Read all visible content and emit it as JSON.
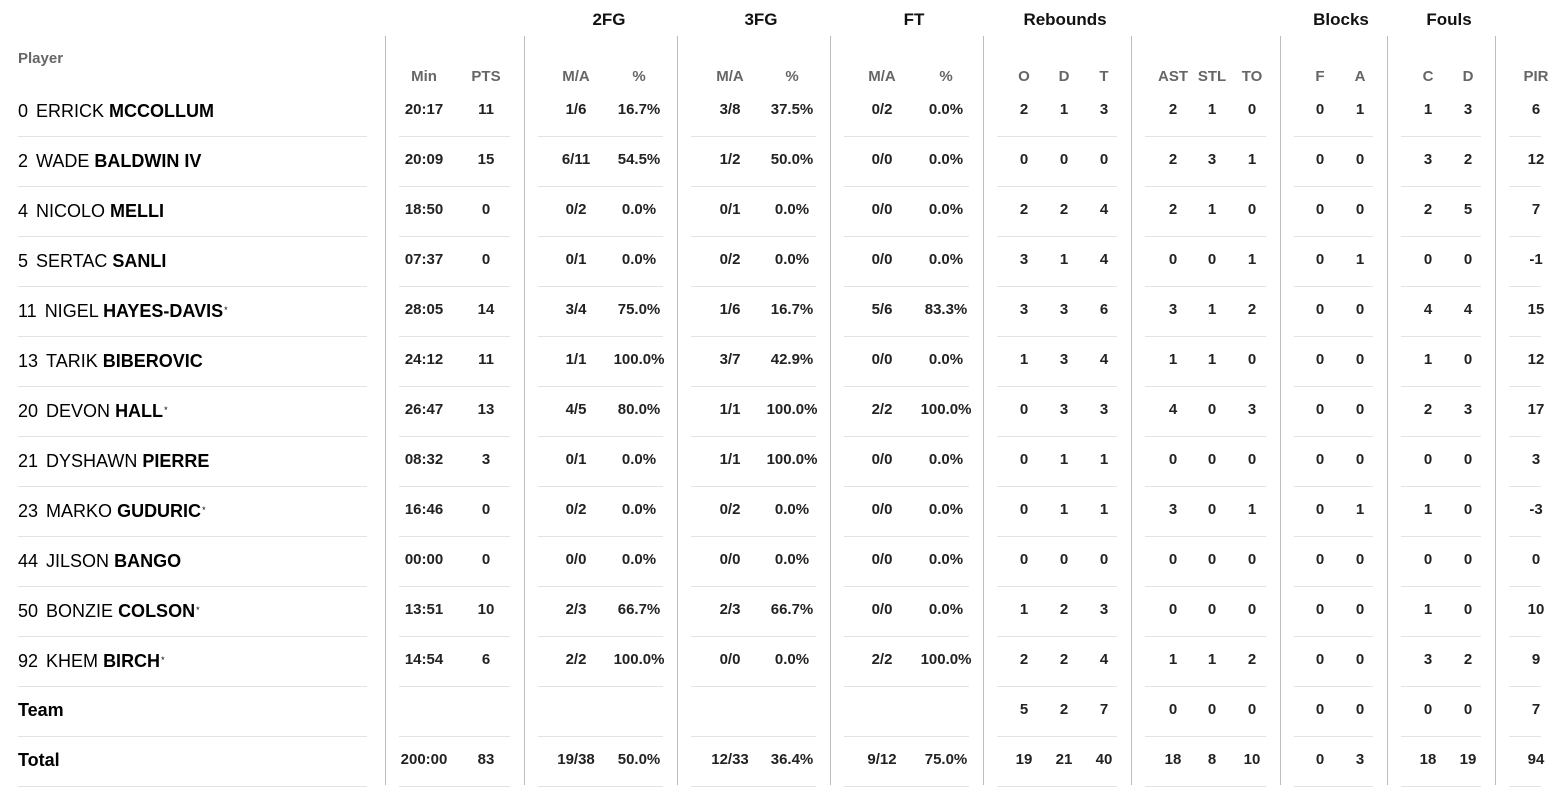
{
  "header": {
    "player": "Player",
    "groups": {
      "fg2": "2FG",
      "fg3": "3FG",
      "ft": "FT",
      "rebounds": "Rebounds",
      "blocks": "Blocks",
      "fouls": "Fouls"
    },
    "columns": {
      "min": "Min",
      "pts": "PTS",
      "fg2_ma": "M/A",
      "fg2_pct": "%",
      "fg3_ma": "M/A",
      "fg3_pct": "%",
      "ft_ma": "M/A",
      "ft_pct": "%",
      "reb_o": "O",
      "reb_d": "D",
      "reb_t": "T",
      "ast": "AST",
      "stl": "STL",
      "to": "TO",
      "blk_f": "F",
      "blk_a": "A",
      "foul_c": "C",
      "foul_d": "D",
      "pir": "PIR"
    }
  },
  "rows": [
    {
      "num": "0",
      "first": "ERRICK",
      "last": "MCCOLLUM",
      "star": "",
      "min": "20:17",
      "pts": "11",
      "fg2_ma": "1/6",
      "fg2_pct": "16.7%",
      "fg3_ma": "3/8",
      "fg3_pct": "37.5%",
      "ft_ma": "0/2",
      "ft_pct": "0.0%",
      "reb_o": "2",
      "reb_d": "1",
      "reb_t": "3",
      "ast": "2",
      "stl": "1",
      "to": "0",
      "blk_f": "0",
      "blk_a": "1",
      "foul_c": "1",
      "foul_d": "3",
      "pir": "6"
    },
    {
      "num": "2",
      "first": "WADE",
      "last": "BALDWIN IV",
      "star": "",
      "min": "20:09",
      "pts": "15",
      "fg2_ma": "6/11",
      "fg2_pct": "54.5%",
      "fg3_ma": "1/2",
      "fg3_pct": "50.0%",
      "ft_ma": "0/0",
      "ft_pct": "0.0%",
      "reb_o": "0",
      "reb_d": "0",
      "reb_t": "0",
      "ast": "2",
      "stl": "3",
      "to": "1",
      "blk_f": "0",
      "blk_a": "0",
      "foul_c": "3",
      "foul_d": "2",
      "pir": "12"
    },
    {
      "num": "4",
      "first": "NICOLO",
      "last": "MELLI",
      "star": "",
      "min": "18:50",
      "pts": "0",
      "fg2_ma": "0/2",
      "fg2_pct": "0.0%",
      "fg3_ma": "0/1",
      "fg3_pct": "0.0%",
      "ft_ma": "0/0",
      "ft_pct": "0.0%",
      "reb_o": "2",
      "reb_d": "2",
      "reb_t": "4",
      "ast": "2",
      "stl": "1",
      "to": "0",
      "blk_f": "0",
      "blk_a": "0",
      "foul_c": "2",
      "foul_d": "5",
      "pir": "7"
    },
    {
      "num": "5",
      "first": "SERTAC",
      "last": "SANLI",
      "star": "",
      "min": "07:37",
      "pts": "0",
      "fg2_ma": "0/1",
      "fg2_pct": "0.0%",
      "fg3_ma": "0/2",
      "fg3_pct": "0.0%",
      "ft_ma": "0/0",
      "ft_pct": "0.0%",
      "reb_o": "3",
      "reb_d": "1",
      "reb_t": "4",
      "ast": "0",
      "stl": "0",
      "to": "1",
      "blk_f": "0",
      "blk_a": "1",
      "foul_c": "0",
      "foul_d": "0",
      "pir": "-1"
    },
    {
      "num": "11",
      "first": "NIGEL",
      "last": "HAYES-DAVIS",
      "star": "*",
      "min": "28:05",
      "pts": "14",
      "fg2_ma": "3/4",
      "fg2_pct": "75.0%",
      "fg3_ma": "1/6",
      "fg3_pct": "16.7%",
      "ft_ma": "5/6",
      "ft_pct": "83.3%",
      "reb_o": "3",
      "reb_d": "3",
      "reb_t": "6",
      "ast": "3",
      "stl": "1",
      "to": "2",
      "blk_f": "0",
      "blk_a": "0",
      "foul_c": "4",
      "foul_d": "4",
      "pir": "15"
    },
    {
      "num": "13",
      "first": "TARIK",
      "last": "BIBEROVIC",
      "star": "",
      "min": "24:12",
      "pts": "11",
      "fg2_ma": "1/1",
      "fg2_pct": "100.0%",
      "fg3_ma": "3/7",
      "fg3_pct": "42.9%",
      "ft_ma": "0/0",
      "ft_pct": "0.0%",
      "reb_o": "1",
      "reb_d": "3",
      "reb_t": "4",
      "ast": "1",
      "stl": "1",
      "to": "0",
      "blk_f": "0",
      "blk_a": "0",
      "foul_c": "1",
      "foul_d": "0",
      "pir": "12"
    },
    {
      "num": "20",
      "first": "DEVON",
      "last": "HALL",
      "star": "*",
      "min": "26:47",
      "pts": "13",
      "fg2_ma": "4/5",
      "fg2_pct": "80.0%",
      "fg3_ma": "1/1",
      "fg3_pct": "100.0%",
      "ft_ma": "2/2",
      "ft_pct": "100.0%",
      "reb_o": "0",
      "reb_d": "3",
      "reb_t": "3",
      "ast": "4",
      "stl": "0",
      "to": "3",
      "blk_f": "0",
      "blk_a": "0",
      "foul_c": "2",
      "foul_d": "3",
      "pir": "17"
    },
    {
      "num": "21",
      "first": "DYSHAWN",
      "last": "PIERRE",
      "star": "",
      "min": "08:32",
      "pts": "3",
      "fg2_ma": "0/1",
      "fg2_pct": "0.0%",
      "fg3_ma": "1/1",
      "fg3_pct": "100.0%",
      "ft_ma": "0/0",
      "ft_pct": "0.0%",
      "reb_o": "0",
      "reb_d": "1",
      "reb_t": "1",
      "ast": "0",
      "stl": "0",
      "to": "0",
      "blk_f": "0",
      "blk_a": "0",
      "foul_c": "0",
      "foul_d": "0",
      "pir": "3"
    },
    {
      "num": "23",
      "first": "MARKO",
      "last": "GUDURIC",
      "star": "*",
      "min": "16:46",
      "pts": "0",
      "fg2_ma": "0/2",
      "fg2_pct": "0.0%",
      "fg3_ma": "0/2",
      "fg3_pct": "0.0%",
      "ft_ma": "0/0",
      "ft_pct": "0.0%",
      "reb_o": "0",
      "reb_d": "1",
      "reb_t": "1",
      "ast": "3",
      "stl": "0",
      "to": "1",
      "blk_f": "0",
      "blk_a": "1",
      "foul_c": "1",
      "foul_d": "0",
      "pir": "-3"
    },
    {
      "num": "44",
      "first": "JILSON",
      "last": "BANGO",
      "star": "",
      "min": "00:00",
      "pts": "0",
      "fg2_ma": "0/0",
      "fg2_pct": "0.0%",
      "fg3_ma": "0/0",
      "fg3_pct": "0.0%",
      "ft_ma": "0/0",
      "ft_pct": "0.0%",
      "reb_o": "0",
      "reb_d": "0",
      "reb_t": "0",
      "ast": "0",
      "stl": "0",
      "to": "0",
      "blk_f": "0",
      "blk_a": "0",
      "foul_c": "0",
      "foul_d": "0",
      "pir": "0"
    },
    {
      "num": "50",
      "first": "BONZIE",
      "last": "COLSON",
      "star": "*",
      "min": "13:51",
      "pts": "10",
      "fg2_ma": "2/3",
      "fg2_pct": "66.7%",
      "fg3_ma": "2/3",
      "fg3_pct": "66.7%",
      "ft_ma": "0/0",
      "ft_pct": "0.0%",
      "reb_o": "1",
      "reb_d": "2",
      "reb_t": "3",
      "ast": "0",
      "stl": "0",
      "to": "0",
      "blk_f": "0",
      "blk_a": "0",
      "foul_c": "1",
      "foul_d": "0",
      "pir": "10"
    },
    {
      "num": "92",
      "first": "KHEM",
      "last": "BIRCH",
      "star": "*",
      "min": "14:54",
      "pts": "6",
      "fg2_ma": "2/2",
      "fg2_pct": "100.0%",
      "fg3_ma": "0/0",
      "fg3_pct": "0.0%",
      "ft_ma": "2/2",
      "ft_pct": "100.0%",
      "reb_o": "2",
      "reb_d": "2",
      "reb_t": "4",
      "ast": "1",
      "stl": "1",
      "to": "2",
      "blk_f": "0",
      "blk_a": "0",
      "foul_c": "3",
      "foul_d": "2",
      "pir": "9"
    }
  ],
  "team": {
    "label": "Team",
    "min": "",
    "pts": "",
    "fg2_ma": "",
    "fg2_pct": "",
    "fg3_ma": "",
    "fg3_pct": "",
    "ft_ma": "",
    "ft_pct": "",
    "reb_o": "5",
    "reb_d": "2",
    "reb_t": "7",
    "ast": "0",
    "stl": "0",
    "to": "0",
    "blk_f": "0",
    "blk_a": "0",
    "foul_c": "0",
    "foul_d": "0",
    "pir": "7"
  },
  "total": {
    "label": "Total",
    "min": "200:00",
    "pts": "83",
    "fg2_ma": "19/38",
    "fg2_pct": "50.0%",
    "fg3_ma": "12/33",
    "fg3_pct": "36.4%",
    "ft_ma": "9/12",
    "ft_pct": "75.0%",
    "reb_o": "19",
    "reb_d": "21",
    "reb_t": "40",
    "ast": "18",
    "stl": "8",
    "to": "10",
    "blk_f": "0",
    "blk_a": "3",
    "foul_c": "18",
    "foul_d": "19",
    "pir": "94"
  }
}
